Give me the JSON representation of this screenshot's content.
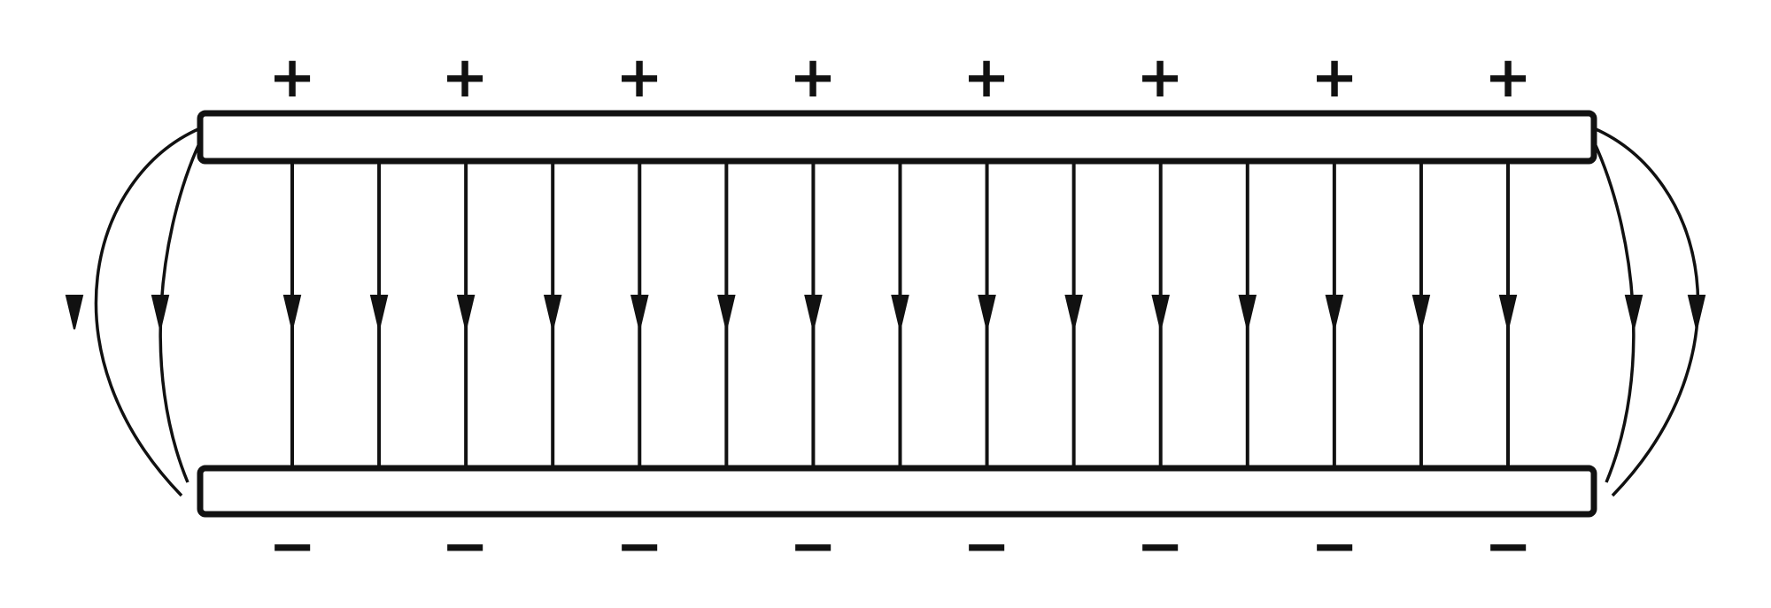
{
  "diagram": {
    "top_plate_label": "+",
    "bottom_plate_label": "−",
    "plus_sign_count": 8,
    "minus_sign_count": 8,
    "interior_field_line_count": 15,
    "fringe_line_count_each_side": 2,
    "field_direction": "down",
    "stroke_color": "#111111",
    "background_color": "#ffffff"
  }
}
